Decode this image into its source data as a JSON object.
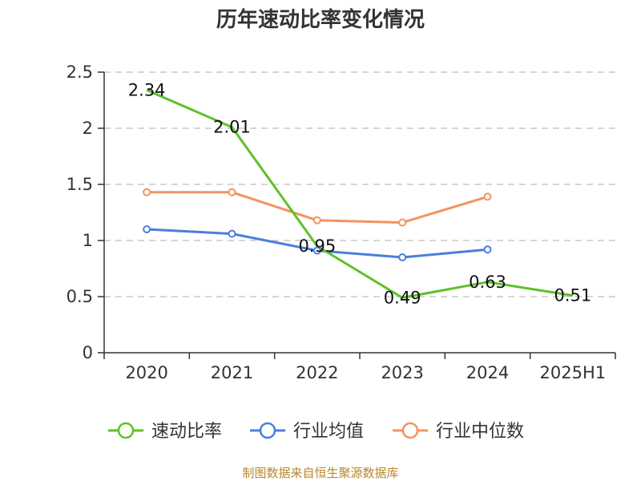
{
  "chart_data": {
    "type": "line",
    "title": "历年速动比率变化情况",
    "categories": [
      "2020",
      "2021",
      "2022",
      "2023",
      "2024",
      "2025H1"
    ],
    "ylim": [
      0,
      2.5
    ],
    "yticks": [
      "0",
      "0.5",
      "1",
      "1.5",
      "2",
      "2.5"
    ],
    "grid": true,
    "legend_position": "bottom",
    "series": [
      {
        "name": "速动比率",
        "color": "#5fc02a",
        "values": [
          2.34,
          2.01,
          0.95,
          0.49,
          0.63,
          0.51
        ],
        "data_labels": [
          "2.34",
          "2.01",
          "0.95",
          "0.49",
          "0.63",
          "0.51"
        ],
        "markers": false
      },
      {
        "name": "行业均值",
        "color": "#4a7fdb",
        "values": [
          1.1,
          1.06,
          0.91,
          0.85,
          0.92,
          null
        ],
        "markers": true
      },
      {
        "name": "行业中位数",
        "color": "#f4935e",
        "values": [
          1.43,
          1.43,
          1.18,
          1.16,
          1.39,
          null
        ],
        "markers": true
      }
    ]
  },
  "footer": {
    "source": "制图数据来自恒生聚源数据库"
  }
}
